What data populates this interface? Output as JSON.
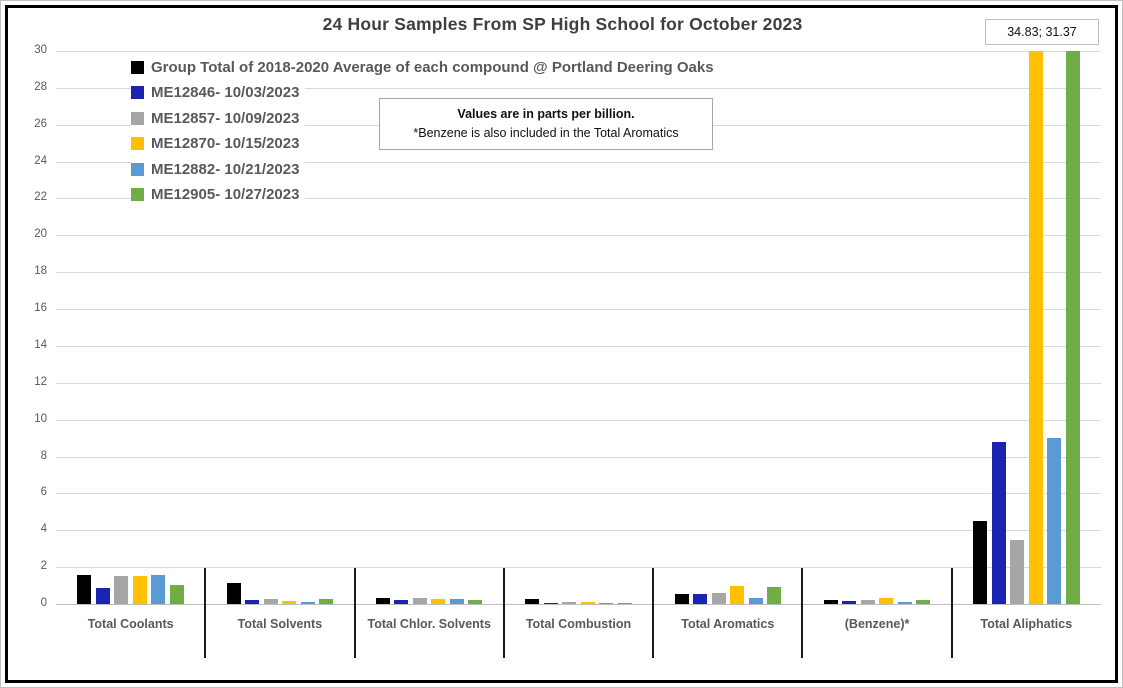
{
  "chart_data": {
    "type": "bar",
    "title": "24 Hour Samples From SP High School for October 2023",
    "units_note": {
      "line1": "Values are in parts per billion.",
      "line2": "*Benzene is also included in the Total Aromatics"
    },
    "overflow_label": "34.83; 31.37",
    "ylim": [
      0,
      30
    ],
    "ytick_step": 2,
    "grid": true,
    "legend_position": "top-left-inside",
    "categories": [
      "Total Coolants",
      "Total Solvents",
      "Total Chlor. Solvents",
      "Total Combustion",
      "Total Aromatics",
      "(Benzene)*",
      "Total Aliphatics"
    ],
    "series": [
      {
        "name": "Group Total of 2018-2020 Average of each compound @ Portland Deering Oaks",
        "color": "#000000",
        "values": [
          1.55,
          1.15,
          0.35,
          0.25,
          0.55,
          0.2,
          4.5
        ]
      },
      {
        "name": "ME12846- 10/03/2023",
        "color": "#1b24b0",
        "values": [
          0.85,
          0.2,
          0.2,
          0.02,
          0.55,
          0.15,
          8.8
        ]
      },
      {
        "name": "ME12857- 10/09/2023",
        "color": "#a6a6a6",
        "values": [
          1.5,
          0.25,
          0.3,
          0.1,
          0.6,
          0.2,
          3.45
        ]
      },
      {
        "name": "ME12870- 10/15/2023",
        "color": "#ffc000",
        "values": [
          1.5,
          0.15,
          0.25,
          0.1,
          0.95,
          0.33,
          34.83
        ]
      },
      {
        "name": "ME12882- 10/21/2023",
        "color": "#5b9bd5",
        "values": [
          1.6,
          0.1,
          0.25,
          0.02,
          0.3,
          0.1,
          9.0
        ]
      },
      {
        "name": "ME12905- 10/27/2023",
        "color": "#70ad47",
        "values": [
          1.05,
          0.25,
          0.2,
          0.03,
          0.9,
          0.2,
          31.37
        ]
      }
    ]
  }
}
